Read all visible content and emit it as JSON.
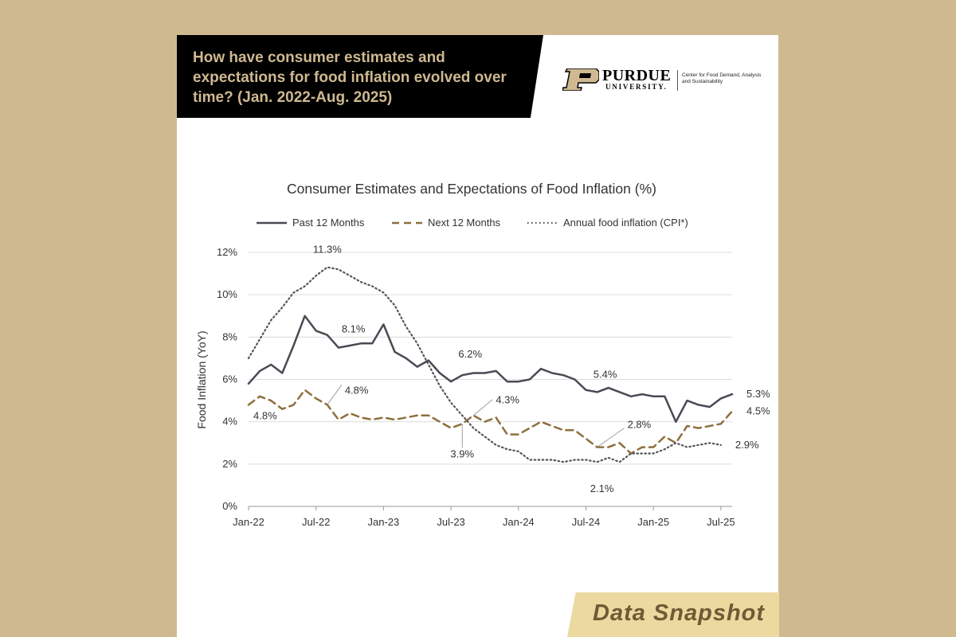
{
  "header": {
    "title": "How have consumer estimates and expectations for food inflation evolved over time? (Jan. 2022-Aug. 2025)"
  },
  "logo": {
    "wordmark": "PURDUE",
    "sub": "UNIVERSITY.",
    "center": "Center for Food Demand, Analysis and Sustainability"
  },
  "footer": {
    "label": "Data Snapshot"
  },
  "colors": {
    "page_background": "#cfb991",
    "past_12_months": "#4a4a55",
    "next_12_months": "#8e6f3e",
    "cpi": "#555555"
  },
  "chart_data": {
    "type": "line",
    "title": "Consumer Estimates and Expectations of Food Inflation (%)",
    "ylabel": "Food Inflation (YoY)",
    "xlabel": "",
    "ylim": [
      0,
      12
    ],
    "ytick_values": [
      0,
      2,
      4,
      6,
      8,
      10,
      12
    ],
    "ytick_labels": [
      "0%",
      "2%",
      "4%",
      "6%",
      "8%",
      "10%",
      "12%"
    ],
    "xtick_positions": [
      0,
      6,
      12,
      18,
      24,
      30,
      36,
      42
    ],
    "xtick_labels": [
      "Jan-22",
      "Jul-22",
      "Jan-23",
      "Jul-23",
      "Jan-24",
      "Jul-24",
      "Jan-25",
      "Jul-25"
    ],
    "legend_position": "top",
    "grid": "horizontal",
    "series": [
      {
        "name": "Past 12 Months",
        "style": "solid",
        "values": [
          5.8,
          6.4,
          6.7,
          6.3,
          7.6,
          9.0,
          8.3,
          8.1,
          7.5,
          7.6,
          7.7,
          7.7,
          8.6,
          7.3,
          7.0,
          6.6,
          6.9,
          6.3,
          5.9,
          6.2,
          6.3,
          6.3,
          6.4,
          5.9,
          5.9,
          6.0,
          6.5,
          6.3,
          6.2,
          6.0,
          5.5,
          5.4,
          5.6,
          5.4,
          5.2,
          5.3,
          5.2,
          5.2,
          4.0,
          5.0,
          4.8,
          4.7,
          5.1,
          5.3
        ]
      },
      {
        "name": "Next 12 Months",
        "style": "dashed",
        "values": [
          4.8,
          5.2,
          5.0,
          4.6,
          4.8,
          5.5,
          5.1,
          4.8,
          4.1,
          4.4,
          4.2,
          4.1,
          4.2,
          4.1,
          4.2,
          4.3,
          4.3,
          4.0,
          3.7,
          3.9,
          4.3,
          4.0,
          4.2,
          3.4,
          3.4,
          3.7,
          4.0,
          3.8,
          3.6,
          3.6,
          3.2,
          2.8,
          2.8,
          3.0,
          2.5,
          2.8,
          2.8,
          3.3,
          3.0,
          3.8,
          3.7,
          3.8,
          3.9,
          4.5
        ]
      },
      {
        "name": "Annual food inflation (CPI*)",
        "style": "dotted",
        "values": [
          7.0,
          7.9,
          8.8,
          9.4,
          10.1,
          10.4,
          10.9,
          11.3,
          11.2,
          10.9,
          10.6,
          10.4,
          10.1,
          9.5,
          8.5,
          7.7,
          6.7,
          5.7,
          4.9,
          4.3,
          3.7,
          3.3,
          2.9,
          2.7,
          2.6,
          2.2,
          2.2,
          2.2,
          2.1,
          2.2,
          2.2,
          2.1,
          2.3,
          2.1,
          2.5,
          2.5,
          2.5,
          2.7,
          3.0,
          2.8,
          2.9,
          3.0,
          2.9
        ]
      }
    ],
    "annotations": [
      {
        "text": "11.3%",
        "series": 2,
        "index": 7
      },
      {
        "text": "8.1%",
        "series": 0,
        "index": 7
      },
      {
        "text": "4.8%",
        "series": 1,
        "index": 7
      },
      {
        "text": "4.8%",
        "series": 1,
        "index": 0
      },
      {
        "text": "6.2%",
        "series": 0,
        "index": 19
      },
      {
        "text": "4.3%",
        "series": 1,
        "index": 20
      },
      {
        "text": "3.9%",
        "series": 1,
        "index": 19
      },
      {
        "text": "5.4%",
        "series": 0,
        "index": 31
      },
      {
        "text": "2.8%",
        "series": 1,
        "index": 31
      },
      {
        "text": "2.1%",
        "series": 2,
        "index": 31
      },
      {
        "text": "5.3%",
        "series": 0,
        "index": 43
      },
      {
        "text": "4.5%",
        "series": 1,
        "index": 43
      },
      {
        "text": "2.9%",
        "series": 2,
        "index": 42
      }
    ]
  }
}
